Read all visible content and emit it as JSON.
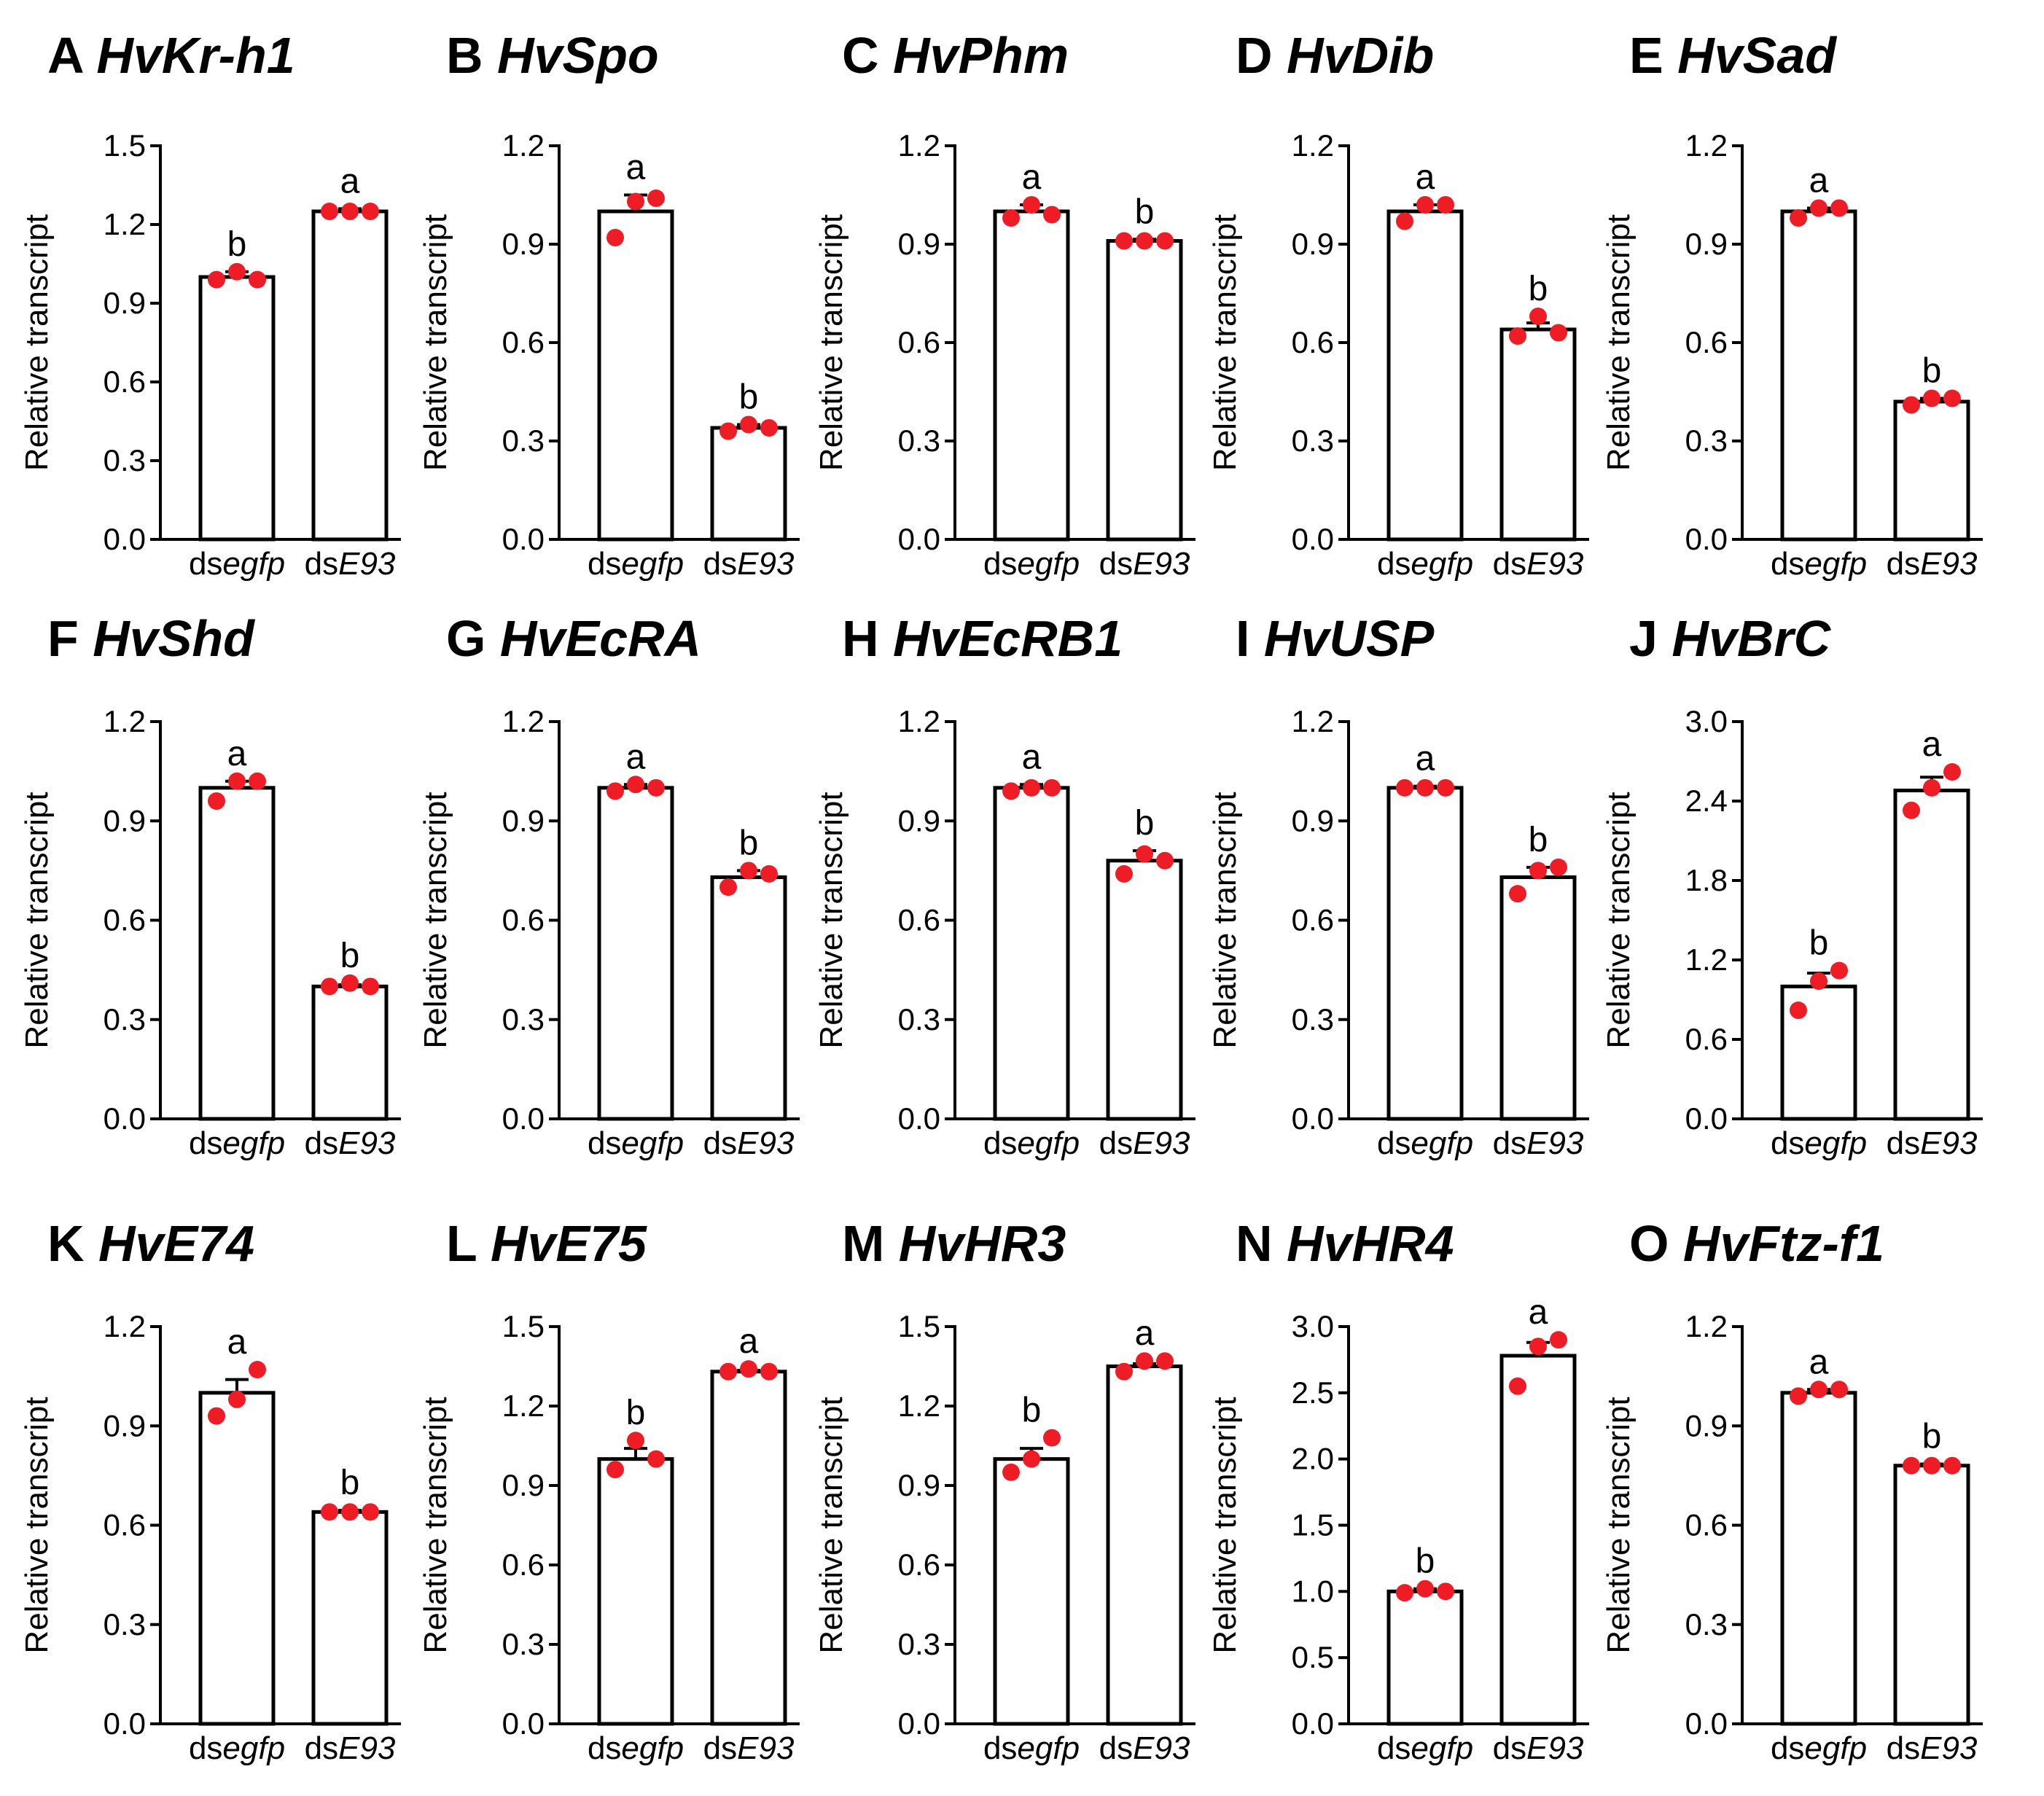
{
  "colors": {
    "axis": "#000000",
    "bar_fill": "#ffffff",
    "points": "#ee1c25"
  },
  "chart_data": [
    {
      "id": "A",
      "letter": "A",
      "gene": "HvKr-h1",
      "type": "bar",
      "ylabel": "Relative  transcript",
      "ylim": [
        0,
        1.5
      ],
      "yticks": [
        "0.0",
        "0.3",
        "0.6",
        "0.9",
        "1.2",
        "1.5"
      ],
      "categories": [
        {
          "prefix": "ds",
          "italic": "egfp"
        },
        {
          "prefix": "ds",
          "italic": "E93"
        }
      ],
      "values": [
        1.0,
        1.25
      ],
      "errors": [
        0.02,
        0.01
      ],
      "letters": [
        "b",
        "a"
      ],
      "points": [
        [
          0.99,
          1.02,
          0.99
        ],
        [
          1.25,
          1.25,
          1.25
        ]
      ]
    },
    {
      "id": "B",
      "letter": "B",
      "gene": "HvSpo",
      "type": "bar",
      "ylabel": "Relative  transcript",
      "ylim": [
        0,
        1.2
      ],
      "yticks": [
        "0.0",
        "0.3",
        "0.6",
        "0.9",
        "1.2"
      ],
      "categories": [
        {
          "prefix": "ds",
          "italic": "egfp"
        },
        {
          "prefix": "ds",
          "italic": "E93"
        }
      ],
      "values": [
        1.0,
        0.34
      ],
      "errors": [
        0.05,
        0.01
      ],
      "letters": [
        "a",
        "b"
      ],
      "points": [
        [
          0.92,
          1.03,
          1.04
        ],
        [
          0.33,
          0.35,
          0.34
        ]
      ]
    },
    {
      "id": "C",
      "letter": "C",
      "gene": "HvPhm",
      "type": "bar",
      "ylabel": "Relative  transcript",
      "ylim": [
        0,
        1.2
      ],
      "yticks": [
        "0.0",
        "0.3",
        "0.6",
        "0.9",
        "1.2"
      ],
      "categories": [
        {
          "prefix": "ds",
          "italic": "egfp"
        },
        {
          "prefix": "ds",
          "italic": "E93"
        }
      ],
      "values": [
        1.0,
        0.91
      ],
      "errors": [
        0.02,
        0.005
      ],
      "letters": [
        "a",
        "b"
      ],
      "points": [
        [
          0.98,
          1.02,
          0.99
        ],
        [
          0.91,
          0.91,
          0.91
        ]
      ]
    },
    {
      "id": "D",
      "letter": "D",
      "gene": "HvDib",
      "type": "bar",
      "ylabel": "Relative  transcript",
      "ylim": [
        0,
        1.2
      ],
      "yticks": [
        "0.0",
        "0.3",
        "0.6",
        "0.9",
        "1.2"
      ],
      "categories": [
        {
          "prefix": "ds",
          "italic": "egfp"
        },
        {
          "prefix": "ds",
          "italic": "E93"
        }
      ],
      "values": [
        1.0,
        0.64
      ],
      "errors": [
        0.02,
        0.02
      ],
      "letters": [
        "a",
        "b"
      ],
      "points": [
        [
          0.97,
          1.02,
          1.02
        ],
        [
          0.62,
          0.68,
          0.63
        ]
      ]
    },
    {
      "id": "E",
      "letter": "E",
      "gene": "HvSad",
      "type": "bar",
      "ylabel": "Relative  transcript",
      "ylim": [
        0,
        1.2
      ],
      "yticks": [
        "0.0",
        "0.3",
        "0.6",
        "0.9",
        "1.2"
      ],
      "categories": [
        {
          "prefix": "ds",
          "italic": "egfp"
        },
        {
          "prefix": "ds",
          "italic": "E93"
        }
      ],
      "values": [
        1.0,
        0.42
      ],
      "errors": [
        0.01,
        0.01
      ],
      "letters": [
        "a",
        "b"
      ],
      "points": [
        [
          0.98,
          1.01,
          1.01
        ],
        [
          0.41,
          0.43,
          0.43
        ]
      ]
    },
    {
      "id": "F",
      "letter": "F",
      "gene": "HvShd",
      "type": "bar",
      "ylabel": "Relative  transcript",
      "ylim": [
        0,
        1.2
      ],
      "yticks": [
        "0.0",
        "0.3",
        "0.6",
        "0.9",
        "1.2"
      ],
      "categories": [
        {
          "prefix": "ds",
          "italic": "egfp"
        },
        {
          "prefix": "ds",
          "italic": "E93"
        }
      ],
      "values": [
        1.0,
        0.4
      ],
      "errors": [
        0.02,
        0.005
      ],
      "letters": [
        "a",
        "b"
      ],
      "points": [
        [
          0.96,
          1.02,
          1.02
        ],
        [
          0.4,
          0.41,
          0.4
        ]
      ]
    },
    {
      "id": "G",
      "letter": "G",
      "gene": "HvEcRA",
      "type": "bar",
      "ylabel": "Relative  transcript",
      "ylim": [
        0,
        1.2
      ],
      "yticks": [
        "0.0",
        "0.3",
        "0.6",
        "0.9",
        "1.2"
      ],
      "categories": [
        {
          "prefix": "ds",
          "italic": "egfp"
        },
        {
          "prefix": "ds",
          "italic": "E93"
        }
      ],
      "values": [
        1.0,
        0.73
      ],
      "errors": [
        0.01,
        0.02
      ],
      "letters": [
        "a",
        "b"
      ],
      "points": [
        [
          0.99,
          1.01,
          1.0
        ],
        [
          0.7,
          0.75,
          0.74
        ]
      ]
    },
    {
      "id": "H",
      "letter": "H",
      "gene": "HvEcRB1",
      "type": "bar",
      "ylabel": "Relative  transcript",
      "ylim": [
        0,
        1.2
      ],
      "yticks": [
        "0.0",
        "0.3",
        "0.6",
        "0.9",
        "1.2"
      ],
      "categories": [
        {
          "prefix": "ds",
          "italic": "egfp"
        },
        {
          "prefix": "ds",
          "italic": "E93"
        }
      ],
      "values": [
        1.0,
        0.78
      ],
      "errors": [
        0.01,
        0.03
      ],
      "letters": [
        "a",
        "b"
      ],
      "points": [
        [
          0.99,
          1.0,
          1.0
        ],
        [
          0.74,
          0.8,
          0.78
        ]
      ]
    },
    {
      "id": "I",
      "letter": "I",
      "gene": "HvUSP",
      "type": "bar",
      "ylabel": "Relative  transcript",
      "ylim": [
        0,
        1.2
      ],
      "yticks": [
        "0.0",
        "0.3",
        "0.6",
        "0.9",
        "1.2"
      ],
      "categories": [
        {
          "prefix": "ds",
          "italic": "egfp"
        },
        {
          "prefix": "ds",
          "italic": "E93"
        }
      ],
      "values": [
        1.0,
        0.73
      ],
      "errors": [
        0.005,
        0.03
      ],
      "letters": [
        "a",
        "b"
      ],
      "points": [
        [
          1.0,
          1.0,
          1.0
        ],
        [
          0.68,
          0.75,
          0.76
        ]
      ]
    },
    {
      "id": "J",
      "letter": "J",
      "gene": "HvBrC",
      "type": "bar",
      "ylabel": "Relative  transcript",
      "ylim": [
        0,
        3.0
      ],
      "yticks": [
        "0.0",
        "0.6",
        "1.2",
        "1.8",
        "2.4",
        "3.0"
      ],
      "categories": [
        {
          "prefix": "ds",
          "italic": "egfp"
        },
        {
          "prefix": "ds",
          "italic": "E93"
        }
      ],
      "values": [
        1.0,
        2.48
      ],
      "errors": [
        0.1,
        0.1
      ],
      "letters": [
        "b",
        "a"
      ],
      "points": [
        [
          0.82,
          1.04,
          1.12
        ],
        [
          2.33,
          2.5,
          2.62
        ]
      ]
    },
    {
      "id": "K",
      "letter": "K",
      "gene": "HvE74",
      "type": "bar",
      "ylabel": "Relative  transcript",
      "ylim": [
        0,
        1.2
      ],
      "yticks": [
        "0.0",
        "0.3",
        "0.6",
        "0.9",
        "1.2"
      ],
      "categories": [
        {
          "prefix": "ds",
          "italic": "egfp"
        },
        {
          "prefix": "ds",
          "italic": "E93"
        }
      ],
      "values": [
        1.0,
        0.64
      ],
      "errors": [
        0.04,
        0.005
      ],
      "letters": [
        "a",
        "b"
      ],
      "points": [
        [
          0.93,
          0.98,
          1.07
        ],
        [
          0.64,
          0.64,
          0.64
        ]
      ]
    },
    {
      "id": "L",
      "letter": "L",
      "gene": "HvE75",
      "type": "bar",
      "ylabel": "Relative  transcript",
      "ylim": [
        0,
        1.5
      ],
      "yticks": [
        "0.0",
        "0.3",
        "0.6",
        "0.9",
        "1.2",
        "1.5"
      ],
      "categories": [
        {
          "prefix": "ds",
          "italic": "egfp"
        },
        {
          "prefix": "ds",
          "italic": "E93"
        }
      ],
      "values": [
        1.0,
        1.33
      ],
      "errors": [
        0.04,
        0.005
      ],
      "letters": [
        "b",
        "a"
      ],
      "points": [
        [
          0.96,
          1.07,
          1.0
        ],
        [
          1.33,
          1.34,
          1.33
        ]
      ]
    },
    {
      "id": "M",
      "letter": "M",
      "gene": "HvHR3",
      "type": "bar",
      "ylabel": "Relative  transcript",
      "ylim": [
        0,
        1.5
      ],
      "yticks": [
        "0.0",
        "0.3",
        "0.6",
        "0.9",
        "1.2",
        "1.5"
      ],
      "categories": [
        {
          "prefix": "ds",
          "italic": "egfp"
        },
        {
          "prefix": "ds",
          "italic": "E93"
        }
      ],
      "values": [
        1.0,
        1.35
      ],
      "errors": [
        0.04,
        0.01
      ],
      "letters": [
        "b",
        "a"
      ],
      "points": [
        [
          0.95,
          1.0,
          1.08
        ],
        [
          1.33,
          1.37,
          1.37
        ]
      ]
    },
    {
      "id": "N",
      "letter": "N",
      "gene": "HvHR4",
      "type": "bar",
      "ylabel": "Relative  transcript",
      "ylim": [
        0,
        3.0
      ],
      "yticks": [
        "0.0",
        "0.5",
        "1.0",
        "1.5",
        "2.0",
        "2.5",
        "3.0"
      ],
      "categories": [
        {
          "prefix": "ds",
          "italic": "egfp"
        },
        {
          "prefix": "ds",
          "italic": "E93"
        }
      ],
      "values": [
        1.0,
        2.78
      ],
      "errors": [
        0.02,
        0.1
      ],
      "letters": [
        "b",
        "a"
      ],
      "points": [
        [
          0.99,
          1.02,
          1.0
        ],
        [
          2.55,
          2.85,
          2.9
        ]
      ]
    },
    {
      "id": "O",
      "letter": "O",
      "gene": "HvFtz-f1",
      "type": "bar",
      "ylabel": "Relative  transcript",
      "ylim": [
        0,
        1.2
      ],
      "yticks": [
        "0.0",
        "0.3",
        "0.6",
        "0.9",
        "1.2"
      ],
      "categories": [
        {
          "prefix": "ds",
          "italic": "egfp"
        },
        {
          "prefix": "ds",
          "italic": "E93"
        }
      ],
      "values": [
        1.0,
        0.78
      ],
      "errors": [
        0.01,
        0.005
      ],
      "letters": [
        "a",
        "b"
      ],
      "points": [
        [
          0.99,
          1.01,
          1.01
        ],
        [
          0.78,
          0.78,
          0.78
        ]
      ]
    }
  ]
}
